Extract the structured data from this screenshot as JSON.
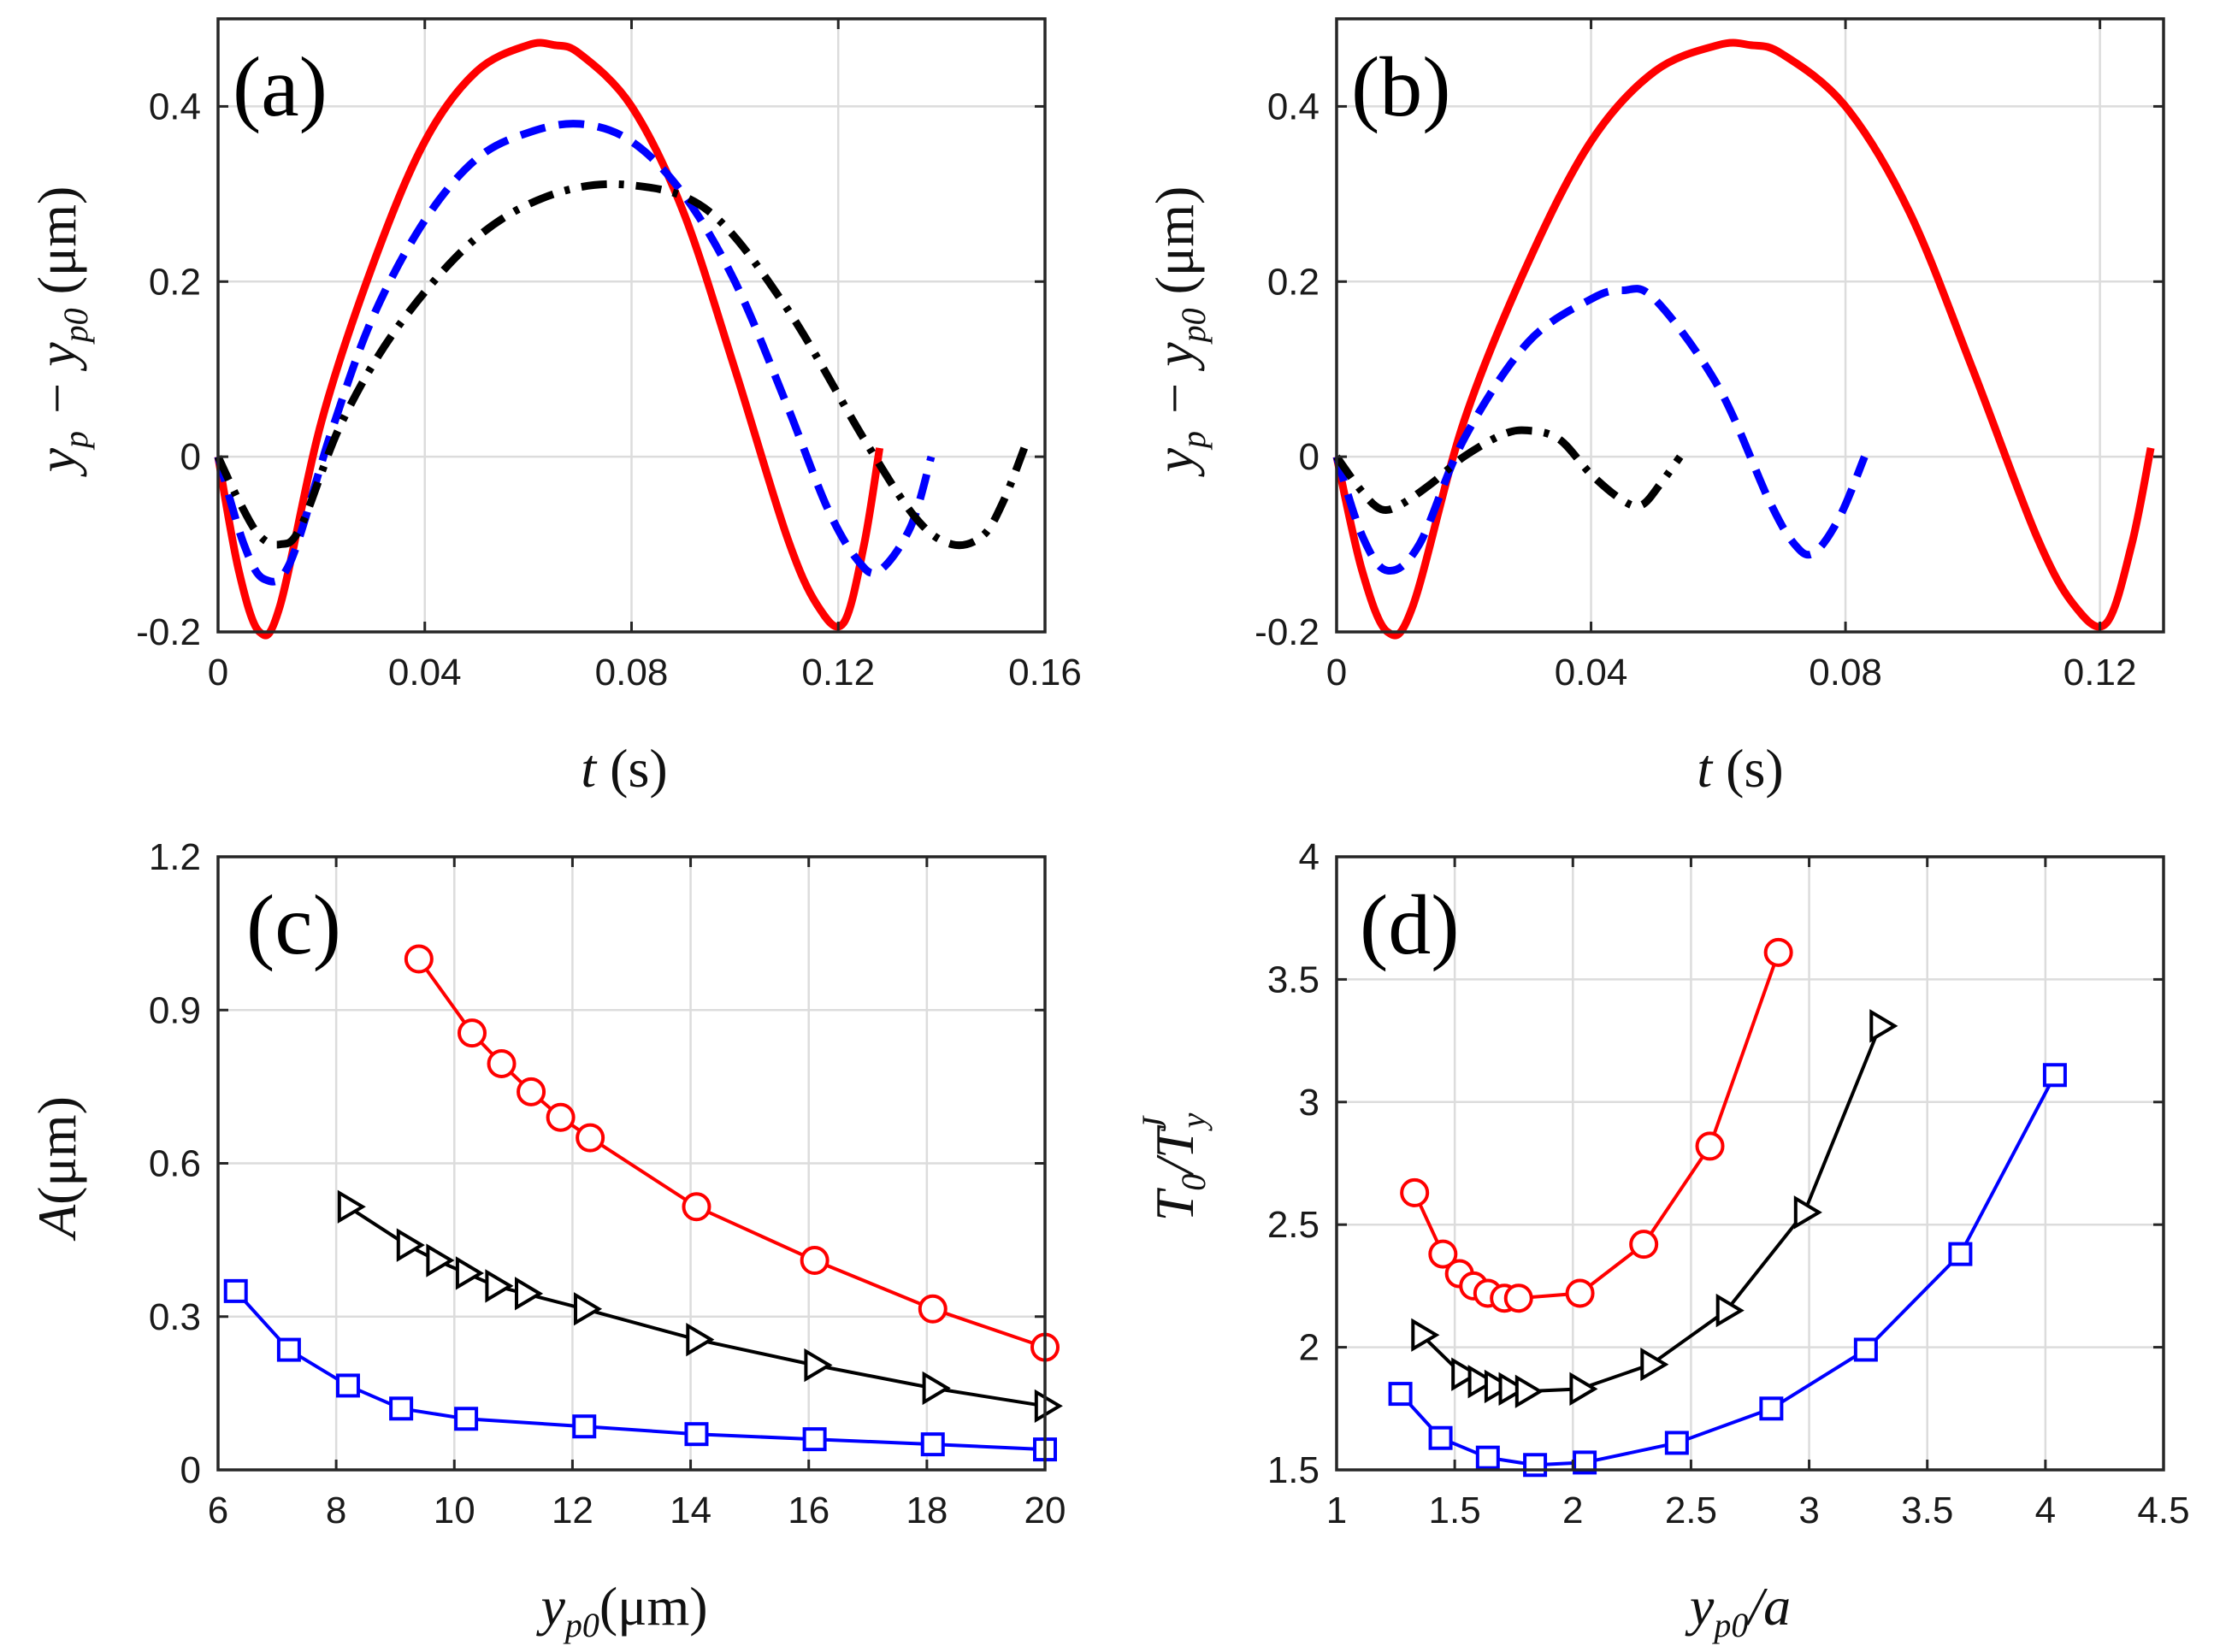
{
  "chart_data": [
    {
      "panel_label": "(a)",
      "type": "line",
      "xlabel": "t (s)",
      "ylabel": "y_p − y_p0 (μm)",
      "xlim": [
        0,
        0.16
      ],
      "ylim": [
        -0.2,
        0.5
      ],
      "xticks": [
        0,
        0.04,
        0.08,
        0.12,
        0.16
      ],
      "xtick_labels": [
        "0",
        "0.04",
        "0.08",
        "0.12",
        "0.16"
      ],
      "yticks": [
        -0.2,
        0,
        0.2,
        0.4
      ],
      "ytick_labels": [
        "-0.2",
        "0",
        "0.2",
        "0.4"
      ],
      "grid": true,
      "series": [
        {
          "name": "red-solid",
          "color": "#ff0000",
          "style": "solid",
          "x": [
            0,
            0.004,
            0.008,
            0.012,
            0.02,
            0.03,
            0.04,
            0.05,
            0.06,
            0.065,
            0.07,
            0.08,
            0.09,
            0.1,
            0.11,
            0.116,
            0.121,
            0.125,
            0.128
          ],
          "y": [
            0,
            -0.13,
            -0.2,
            -0.17,
            0.04,
            0.22,
            0.36,
            0.44,
            0.47,
            0.47,
            0.46,
            0.4,
            0.28,
            0.1,
            -0.09,
            -0.17,
            -0.19,
            -0.1,
            0.01
          ]
        },
        {
          "name": "blue-dashed",
          "color": "#0000ff",
          "style": "dashed",
          "x": [
            0,
            0.005,
            0.009,
            0.014,
            0.022,
            0.03,
            0.04,
            0.05,
            0.06,
            0.07,
            0.08,
            0.09,
            0.1,
            0.11,
            0.118,
            0.124,
            0.128,
            0.134,
            0.138
          ],
          "y": [
            0,
            -0.1,
            -0.14,
            -0.12,
            0.03,
            0.16,
            0.27,
            0.34,
            0.37,
            0.38,
            0.36,
            0.3,
            0.2,
            0.06,
            -0.06,
            -0.12,
            -0.13,
            -0.08,
            0.0
          ]
        },
        {
          "name": "black-dashdot",
          "color": "#000000",
          "style": "dashdot",
          "x": [
            0,
            0.004,
            0.008,
            0.012,
            0.016,
            0.024,
            0.035,
            0.05,
            0.065,
            0.08,
            0.095,
            0.11,
            0.125,
            0.135,
            0.142,
            0.148,
            0.152,
            0.156
          ],
          "y": [
            0,
            -0.05,
            -0.09,
            -0.1,
            -0.08,
            0.04,
            0.15,
            0.25,
            0.3,
            0.31,
            0.28,
            0.17,
            0.02,
            -0.07,
            -0.1,
            -0.09,
            -0.05,
            0.01
          ]
        }
      ]
    },
    {
      "panel_label": "(b)",
      "type": "line",
      "xlabel": "t (s)",
      "ylabel": "y_p − y_p0 (μm)",
      "xlim": [
        0,
        0.13
      ],
      "ylim": [
        -0.2,
        0.5
      ],
      "xticks": [
        0,
        0.04,
        0.08,
        0.12
      ],
      "xtick_labels": [
        "0",
        "0.04",
        "0.08",
        "0.12"
      ],
      "yticks": [
        -0.2,
        0,
        0.2,
        0.4
      ],
      "ytick_labels": [
        "-0.2",
        "0",
        "0.2",
        "0.4"
      ],
      "grid": true,
      "series": [
        {
          "name": "red-solid",
          "color": "#ff0000",
          "style": "solid",
          "x": [
            0,
            0.004,
            0.008,
            0.012,
            0.02,
            0.03,
            0.04,
            0.05,
            0.06,
            0.065,
            0.07,
            0.08,
            0.09,
            0.1,
            0.11,
            0.116,
            0.121,
            0.125,
            0.128
          ],
          "y": [
            0,
            -0.13,
            -0.2,
            -0.17,
            0.04,
            0.22,
            0.36,
            0.44,
            0.47,
            0.47,
            0.46,
            0.4,
            0.28,
            0.1,
            -0.09,
            -0.17,
            -0.19,
            -0.1,
            0.01
          ]
        },
        {
          "name": "blue-dashed",
          "color": "#0000ff",
          "style": "dashed",
          "x": [
            0,
            0.004,
            0.008,
            0.013,
            0.02,
            0.03,
            0.04,
            0.045,
            0.05,
            0.06,
            0.068,
            0.072,
            0.075,
            0.079,
            0.083
          ],
          "y": [
            0,
            -0.09,
            -0.13,
            -0.1,
            0.02,
            0.13,
            0.18,
            0.19,
            0.18,
            0.08,
            -0.05,
            -0.1,
            -0.11,
            -0.07,
            0.0
          ]
        },
        {
          "name": "black-dashdot",
          "color": "#000000",
          "style": "dashdot",
          "x": [
            0,
            0.004,
            0.007,
            0.01,
            0.015,
            0.02,
            0.026,
            0.03,
            0.035,
            0.04,
            0.045,
            0.048,
            0.051,
            0.054
          ],
          "y": [
            0,
            -0.04,
            -0.06,
            -0.055,
            -0.03,
            0.0,
            0.025,
            0.03,
            0.02,
            -0.02,
            -0.05,
            -0.055,
            -0.03,
            0.0
          ]
        }
      ]
    },
    {
      "panel_label": "(c)",
      "type": "line",
      "xlabel": "y_p0 (μm)",
      "ylabel": "A (μm)",
      "xlim": [
        6,
        20
      ],
      "ylim": [
        0,
        1.2
      ],
      "xticks": [
        6,
        8,
        10,
        12,
        14,
        16,
        18,
        20
      ],
      "xtick_labels": [
        "6",
        "8",
        "10",
        "12",
        "14",
        "16",
        "18",
        "20"
      ],
      "yticks": [
        0,
        0.3,
        0.6,
        0.9,
        1.2
      ],
      "ytick_labels": [
        "0",
        "0.3",
        "0.6",
        "0.9",
        "1.2"
      ],
      "grid": true,
      "series": [
        {
          "name": "red-circles",
          "color": "#ff0000",
          "marker": "circle",
          "x": [
            9.4,
            10.3,
            10.8,
            11.3,
            11.8,
            12.3,
            14.1,
            16.1,
            18.1,
            20.0
          ],
          "y": [
            1.0,
            0.855,
            0.795,
            0.74,
            0.69,
            0.65,
            0.515,
            0.41,
            0.315,
            0.24
          ]
        },
        {
          "name": "black-triangles",
          "color": "#000000",
          "marker": "triangle-right",
          "x": [
            8.2,
            9.2,
            9.7,
            10.2,
            10.7,
            11.2,
            12.2,
            14.1,
            16.1,
            18.1,
            20.0
          ],
          "y": [
            0.515,
            0.44,
            0.41,
            0.385,
            0.36,
            0.345,
            0.315,
            0.255,
            0.205,
            0.16,
            0.125
          ]
        },
        {
          "name": "blue-squares",
          "color": "#0000ff",
          "marker": "square",
          "x": [
            6.3,
            7.2,
            8.2,
            9.1,
            10.2,
            12.2,
            14.1,
            16.1,
            18.1,
            20.0
          ],
          "y": [
            0.35,
            0.235,
            0.165,
            0.12,
            0.1,
            0.085,
            0.07,
            0.06,
            0.05,
            0.04
          ]
        }
      ]
    },
    {
      "panel_label": "(d)",
      "type": "line",
      "xlabel": "y_p0 / a",
      "ylabel": "T_0 / T_y^J",
      "xlim": [
        1,
        4.5
      ],
      "ylim": [
        1.5,
        4
      ],
      "xticks": [
        1,
        1.5,
        2,
        2.5,
        3,
        3.5,
        4,
        4.5
      ],
      "xtick_labels": [
        "1",
        "1.5",
        "2",
        "2.5",
        "3",
        "3.5",
        "4",
        "4.5"
      ],
      "yticks": [
        1.5,
        2,
        2.5,
        3,
        3.5,
        4
      ],
      "ytick_labels": [
        "1.5",
        "2",
        "2.5",
        "3",
        "3.5",
        "4"
      ],
      "grid": true,
      "series": [
        {
          "name": "red-circles",
          "color": "#ff0000",
          "marker": "circle",
          "x": [
            1.33,
            1.45,
            1.52,
            1.58,
            1.64,
            1.71,
            1.77,
            2.03,
            2.3,
            2.58,
            2.87
          ],
          "y": [
            2.63,
            2.38,
            2.3,
            2.25,
            2.22,
            2.2,
            2.2,
            2.22,
            2.42,
            2.82,
            3.61
          ]
        },
        {
          "name": "black-triangles",
          "color": "#000000",
          "marker": "triangle-right",
          "x": [
            1.36,
            1.53,
            1.6,
            1.67,
            1.73,
            1.8,
            2.03,
            2.33,
            2.65,
            2.98,
            3.3
          ],
          "y": [
            2.05,
            1.89,
            1.86,
            1.84,
            1.83,
            1.82,
            1.83,
            1.93,
            2.15,
            2.55,
            3.31
          ]
        },
        {
          "name": "blue-squares",
          "color": "#0000ff",
          "marker": "square",
          "x": [
            1.27,
            1.44,
            1.64,
            1.84,
            2.05,
            2.44,
            2.84,
            3.24,
            3.64,
            4.04
          ],
          "y": [
            1.81,
            1.63,
            1.55,
            1.52,
            1.53,
            1.61,
            1.75,
            1.99,
            2.38,
            3.11
          ]
        }
      ]
    }
  ]
}
